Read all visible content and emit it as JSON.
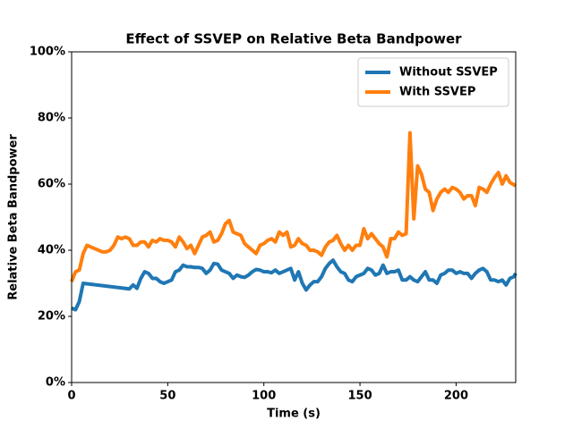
{
  "chart_data": {
    "type": "line",
    "title": "Effect of SSVEP on Relative Beta Bandpower",
    "xlabel": "Time (s)",
    "ylabel": "Relative Beta Bandpower",
    "xlim": [
      0,
      231
    ],
    "xticks": [
      0,
      50,
      100,
      150,
      200
    ],
    "ylim": [
      0,
      100
    ],
    "yticks": [
      {
        "value": 0,
        "label": "0%"
      },
      {
        "value": 20,
        "label": "20%"
      },
      {
        "value": 40,
        "label": "40%"
      },
      {
        "value": 60,
        "label": "60%"
      },
      {
        "value": 80,
        "label": "80%"
      },
      {
        "value": 100,
        "label": "100%"
      }
    ],
    "legend": "upper right",
    "series": [
      {
        "name": "Without SSVEP",
        "color": "#1f77b4",
        "x": [
          0,
          2,
          4,
          6,
          30,
          32,
          34,
          36,
          38,
          40,
          42,
          44,
          46,
          48,
          50,
          52,
          54,
          56,
          58,
          60,
          62,
          64,
          66,
          68,
          70,
          72,
          74,
          76,
          78,
          80,
          82,
          84,
          86,
          88,
          90,
          92,
          94,
          96,
          98,
          100,
          102,
          104,
          106,
          108,
          110,
          112,
          114,
          116,
          118,
          120,
          122,
          124,
          126,
          128,
          130,
          132,
          134,
          136,
          138,
          140,
          142,
          144,
          146,
          148,
          150,
          152,
          154,
          156,
          158,
          160,
          162,
          164,
          166,
          168,
          170,
          172,
          174,
          176,
          178,
          180,
          182,
          184,
          186,
          188,
          190,
          192,
          194,
          196,
          198,
          200,
          202,
          204,
          206,
          208,
          210,
          212,
          214,
          216,
          218,
          220,
          222,
          224,
          226,
          228,
          230,
          231
        ],
        "values": [
          22.5,
          22,
          24.5,
          30,
          28.3,
          29.5,
          28.5,
          31.5,
          33.5,
          33,
          31.5,
          31.5,
          30.5,
          30,
          30.5,
          31,
          33.5,
          34,
          35.5,
          35,
          35,
          34.8,
          34.8,
          34.5,
          33,
          34,
          36,
          35.8,
          34,
          33.5,
          33,
          31.5,
          32.5,
          32,
          31.8,
          32.5,
          33.5,
          34.2,
          34,
          33.5,
          33.5,
          33.2,
          34,
          33,
          33.5,
          34,
          34.5,
          31,
          33.5,
          30,
          28,
          29.5,
          30.5,
          30.5,
          32,
          34.5,
          36,
          37,
          35,
          33.5,
          33,
          31,
          30.5,
          32,
          32.5,
          33,
          34.5,
          34,
          32.5,
          33,
          35.5,
          33,
          33.5,
          33.5,
          34,
          31,
          31,
          32,
          31,
          30.5,
          32,
          33.5,
          31,
          31,
          30,
          32.5,
          33,
          34,
          34,
          33,
          33.5,
          33,
          33,
          31.5,
          33,
          34,
          34.5,
          33.5,
          31,
          31,
          30.5,
          31,
          29.5,
          31.5,
          32,
          33
        ]
      },
      {
        "name": "With SSVEP",
        "color": "#ff7f0e",
        "x": [
          0,
          2,
          4,
          6,
          8,
          10,
          12,
          14,
          16,
          18,
          20,
          22,
          24,
          26,
          28,
          30,
          32,
          34,
          36,
          38,
          40,
          42,
          44,
          46,
          48,
          50,
          52,
          54,
          56,
          58,
          60,
          62,
          64,
          66,
          68,
          70,
          72,
          74,
          76,
          78,
          80,
          82,
          84,
          86,
          88,
          90,
          92,
          94,
          96,
          98,
          100,
          102,
          104,
          106,
          108,
          110,
          112,
          114,
          116,
          118,
          120,
          122,
          124,
          126,
          128,
          130,
          132,
          134,
          136,
          138,
          140,
          142,
          144,
          146,
          148,
          150,
          152,
          154,
          156,
          158,
          160,
          162,
          164,
          166,
          168,
          170,
          172,
          174,
          176,
          178,
          180,
          182,
          184,
          186,
          188,
          190,
          192,
          194,
          196,
          198,
          200,
          202,
          204,
          206,
          208,
          210,
          212,
          214,
          216,
          218,
          220,
          222,
          224,
          226,
          228,
          231
        ],
        "values": [
          30.5,
          33.5,
          34,
          39,
          41.5,
          41,
          40.5,
          40,
          39.5,
          39.5,
          40,
          41.5,
          44,
          43.5,
          44,
          43.5,
          41.5,
          41.5,
          42.5,
          42.5,
          41,
          43,
          42.5,
          43.5,
          43,
          43,
          42.5,
          41,
          44,
          42.5,
          40.5,
          41.5,
          39,
          41.5,
          44,
          44.5,
          45.5,
          42.5,
          43,
          45,
          48,
          49,
          45.5,
          45,
          44.5,
          42,
          41,
          40,
          39,
          41.5,
          42,
          43,
          43.5,
          42.5,
          45.5,
          44.5,
          45.5,
          41,
          41.5,
          43.5,
          42,
          41.5,
          40,
          40,
          39.5,
          38.5,
          41,
          42.5,
          43,
          44.5,
          42,
          40,
          41.5,
          40,
          41.5,
          41.5,
          46.5,
          43.5,
          45,
          43.5,
          42,
          41,
          38,
          43.5,
          43.5,
          45.5,
          44.5,
          45,
          75.5,
          49.5,
          65.5,
          63,
          58.5,
          57.5,
          52,
          55.5,
          57.5,
          58.5,
          57.5,
          59,
          58.5,
          57.5,
          55.5,
          56.5,
          56.5,
          53.5,
          59,
          58.5,
          57.5,
          60,
          62,
          63.5,
          60,
          62.5,
          60.5,
          59.5
        ]
      }
    ]
  }
}
